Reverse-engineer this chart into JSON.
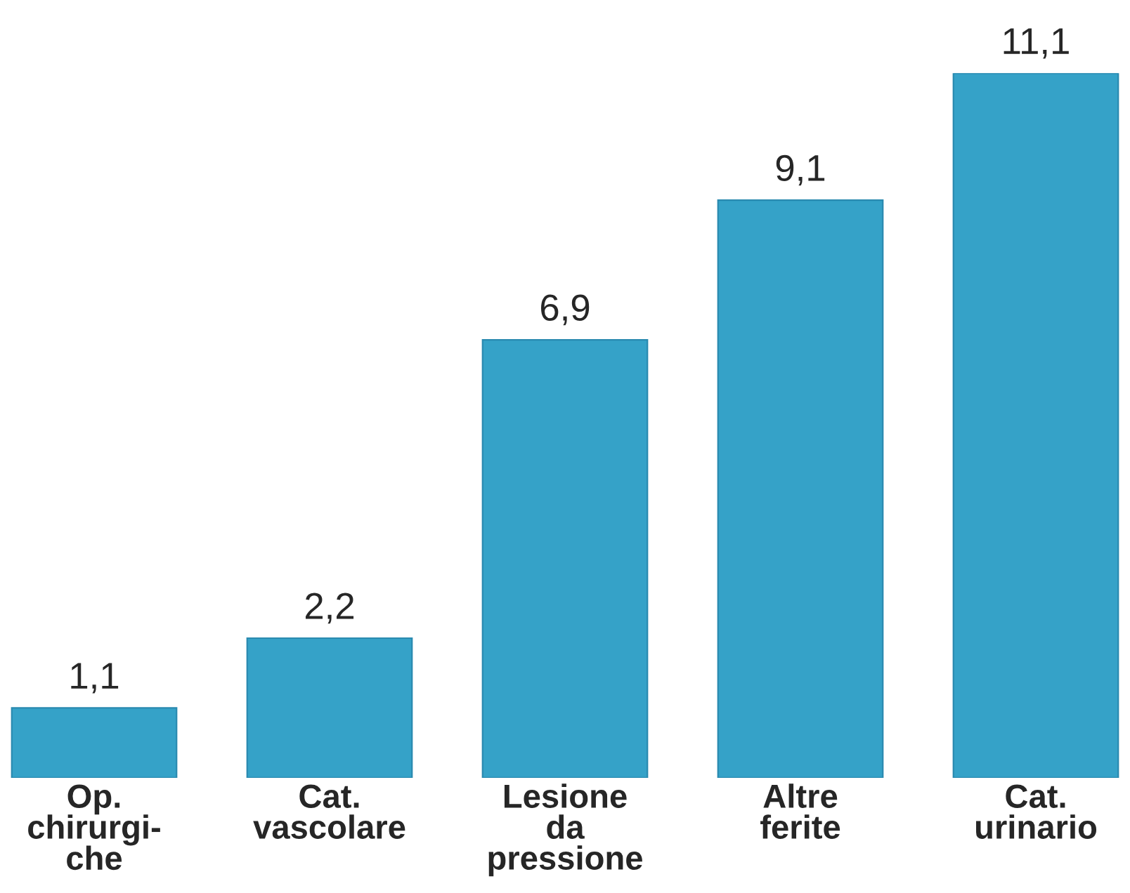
{
  "chart_data": {
    "type": "bar",
    "categories": [
      "Op.\nchirurgi-\nche",
      "Cat.\nvascolare",
      "Lesione\nda\npressione",
      "Altre\nferite",
      "Cat.\nurinario"
    ],
    "values": [
      1.1,
      2.2,
      6.9,
      9.1,
      11.1
    ],
    "value_labels": [
      "1,1",
      "2,2",
      "6,9",
      "9,1",
      "11,1"
    ],
    "color": "#35a2c8",
    "grid": false,
    "legend": false
  }
}
